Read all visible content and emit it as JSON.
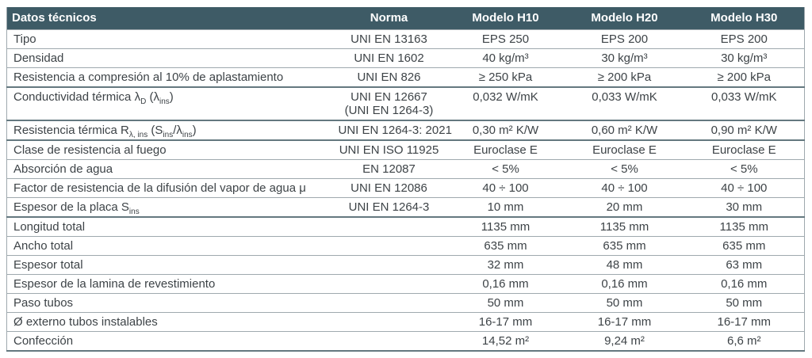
{
  "colors": {
    "header_bg": "#3e5b66",
    "header_text": "#ffffff",
    "body_text": "#3d4347",
    "row_border": "#9fa9ae",
    "group_border": "#64787f",
    "page_bg": "#ffffff"
  },
  "table": {
    "title": "Datos técnicos",
    "columns": [
      "Norma",
      "Modelo H10",
      "Modelo H20",
      "Modelo H30"
    ],
    "rows": [
      {
        "label": "Tipo",
        "norma": "UNI EN 13163",
        "values": [
          "EPS 250",
          "EPS 200",
          "EPS 200"
        ]
      },
      {
        "label": "Densidad",
        "norma": "UNI EN 1602",
        "values": [
          "40 kg/m³",
          "30 kg/m³",
          "30 kg/m³"
        ]
      },
      {
        "label": "Resistencia a compresión al 10% de aplastamiento",
        "norma": "UNI EN 826",
        "values": [
          "≥ 250 kPa",
          "≥ 200 kPa",
          "≥ 200 kPa"
        ]
      },
      {
        "label": "Conductividad térmica λ[D] (λ[ins])",
        "norma": "UNI EN 12667\n(UNI EN 1264-3)",
        "values": [
          "0,032 W/mK",
          "0,033 W/mK",
          "0,033 W/mK"
        ],
        "group_start": true
      },
      {
        "label": "Resistencia térmica R[λ, ins] (S[ins]/λ[ins])",
        "norma": "UNI EN 1264-3: 2021",
        "values": [
          "0,30 m² K/W",
          "0,60 m² K/W",
          "0,90 m² K/W"
        ],
        "group_start": true
      },
      {
        "label": "Clase de resistencia al fuego",
        "norma": "UNI EN ISO 11925",
        "values": [
          "Euroclase E",
          "Euroclase E",
          "Euroclase E"
        ],
        "group_start": true
      },
      {
        "label": "Absorción de agua",
        "norma": "EN 12087",
        "values": [
          "< 5%",
          "< 5%",
          "< 5%"
        ]
      },
      {
        "label": "Factor de resistencia de la difusión del vapor de agua μ",
        "norma": "UNI EN 12086",
        "values": [
          "40 ÷ 100",
          "40 ÷ 100",
          "40 ÷ 100"
        ]
      },
      {
        "label": "Espesor de la placa S[ins]",
        "norma": "UNI EN 1264-3",
        "values": [
          "10 mm",
          "20 mm",
          "30 mm"
        ]
      },
      {
        "label": "Longitud total",
        "norma": "",
        "values": [
          "1135 mm",
          "1135 mm",
          "1135 mm"
        ],
        "group_start": true
      },
      {
        "label": "Ancho total",
        "norma": "",
        "values": [
          "635 mm",
          "635 mm",
          "635 mm"
        ]
      },
      {
        "label": "Espesor total",
        "norma": "",
        "values": [
          "32 mm",
          "48 mm",
          "63 mm"
        ]
      },
      {
        "label": "Espesor de la lamina de revestimiento",
        "norma": "",
        "values": [
          "0,16 mm",
          "0,16 mm",
          "0,16 mm"
        ]
      },
      {
        "label": "Paso tubos",
        "norma": "",
        "values": [
          "50 mm",
          "50 mm",
          "50 mm"
        ]
      },
      {
        "label": "Ø externo tubos instalables",
        "norma": "",
        "values": [
          "16-17 mm",
          "16-17 mm",
          "16-17 mm"
        ]
      },
      {
        "label": "Confección",
        "norma": "",
        "values": [
          "14,52 m²",
          "9,24 m²",
          "6,6 m²"
        ]
      }
    ]
  }
}
